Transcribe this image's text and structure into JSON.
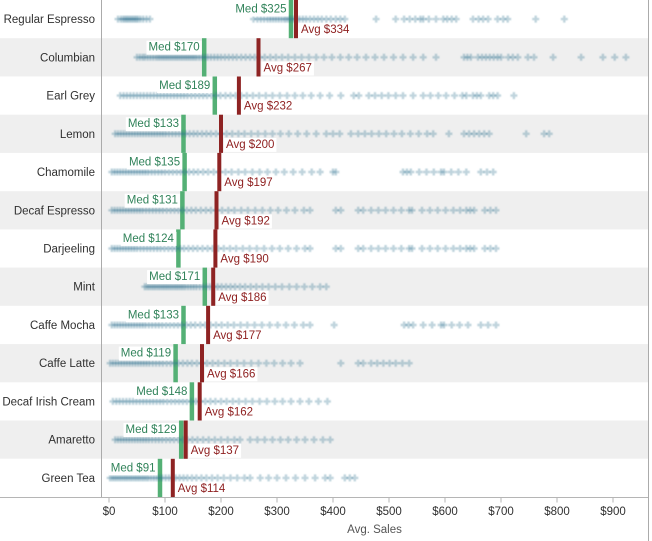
{
  "chart_data": {
    "type": "scatter",
    "subtype": "strip-plot-with-reference-lines",
    "xlabel": "Avg. Sales",
    "x_ticks": [
      "$0",
      "$100",
      "$200",
      "$300",
      "$400",
      "$500",
      "$600",
      "$700",
      "$800",
      "$900"
    ],
    "x_tick_values": [
      0,
      100,
      200,
      300,
      400,
      500,
      600,
      700,
      800,
      900
    ],
    "xlim": [
      -15,
      965
    ],
    "grid": "row-banding",
    "legend": "none",
    "median_label_prefix": "Med $",
    "avg_label_prefix": "Avg $",
    "rows": [
      {
        "label": "Regular Espresso",
        "median": 325,
        "avg": 334,
        "points": [
          16,
          21,
          25,
          28,
          31,
          34,
          37,
          40,
          43,
          46,
          49,
          52,
          56,
          61,
          67,
          73,
          258,
          265,
          271,
          277,
          283,
          288,
          293,
          298,
          303,
          308,
          313,
          317,
          321,
          325,
          330,
          335,
          340,
          346,
          352,
          359,
          366,
          373,
          380,
          388,
          396,
          405,
          413,
          421,
          477,
          512,
          527,
          537,
          547,
          556,
          561,
          571,
          584,
          597,
          604,
          612,
          620,
          650,
          660,
          668,
          677,
          694,
          704,
          712,
          762,
          813
        ]
      },
      {
        "label": "Columbian",
        "median": 170,
        "avg": 267,
        "points": [
          50,
          55,
          60,
          64,
          69,
          74,
          79,
          84,
          88,
          92,
          96,
          100,
          104,
          108,
          112,
          116,
          120,
          124,
          128,
          132,
          136,
          140,
          144,
          148,
          152,
          156,
          161,
          166,
          171,
          176,
          182,
          188,
          194,
          200,
          207,
          214,
          221,
          228,
          236,
          244,
          252,
          260,
          269,
          278,
          288,
          298,
          309,
          320,
          332,
          344,
          357,
          370,
          384,
          398,
          413,
          428,
          443,
          459,
          475,
          491,
          508,
          525,
          543,
          561,
          584,
          634,
          640,
          646,
          659,
          666,
          673,
          680,
          687,
          694,
          700,
          713,
          721,
          730,
          748,
          759,
          793,
          843,
          882,
          903,
          923
        ]
      },
      {
        "label": "Earl Grey",
        "median": 189,
        "avg": 232,
        "points": [
          20,
          26,
          32,
          38,
          44,
          50,
          56,
          62,
          68,
          74,
          80,
          86,
          92,
          98,
          104,
          110,
          116,
          122,
          128,
          134,
          140,
          147,
          154,
          161,
          168,
          175,
          183,
          191,
          199,
          208,
          217,
          226,
          236,
          246,
          257,
          268,
          280,
          292,
          305,
          318,
          332,
          346,
          361,
          377,
          394,
          414,
          437,
          446,
          464,
          475,
          487,
          499,
          512,
          525,
          543,
          561,
          574,
          588,
          602,
          617,
          631,
          638,
          650,
          657,
          664,
          679,
          686,
          694,
          723
        ]
      },
      {
        "label": "Lemon",
        "median": 133,
        "avg": 200,
        "points": [
          11,
          16,
          21,
          26,
          31,
          36,
          41,
          46,
          51,
          56,
          61,
          66,
          71,
          76,
          81,
          86,
          91,
          96,
          101,
          107,
          113,
          119,
          125,
          131,
          137,
          144,
          151,
          158,
          166,
          174,
          182,
          191,
          200,
          210,
          220,
          231,
          242,
          254,
          266,
          279,
          292,
          306,
          321,
          337,
          353,
          370,
          388,
          400,
          412,
          432,
          445,
          457,
          469,
          482,
          495,
          509,
          523,
          538,
          553,
          568,
          579,
          607,
          634,
          643,
          652,
          661,
          670,
          679,
          745,
          777,
          786
        ]
      },
      {
        "label": "Chamomile",
        "median": 135,
        "avg": 197,
        "points": [
          5,
          10,
          15,
          20,
          25,
          30,
          35,
          40,
          45,
          50,
          55,
          60,
          65,
          70,
          76,
          82,
          88,
          94,
          100,
          107,
          114,
          121,
          128,
          135,
          143,
          151,
          159,
          168,
          177,
          187,
          197,
          208,
          219,
          231,
          243,
          256,
          269,
          283,
          298,
          313,
          329,
          345,
          362,
          377,
          400,
          405,
          525,
          532,
          539,
          554,
          567,
          580,
          593,
          598,
          611,
          624,
          638,
          664,
          675,
          686
        ]
      },
      {
        "label": "Decaf Espresso",
        "median": 131,
        "avg": 192,
        "points": [
          5,
          10,
          15,
          20,
          25,
          30,
          35,
          40,
          45,
          50,
          55,
          60,
          66,
          72,
          78,
          84,
          90,
          96,
          103,
          110,
          117,
          124,
          131,
          139,
          147,
          155,
          164,
          173,
          182,
          192,
          202,
          213,
          224,
          236,
          248,
          261,
          274,
          288,
          302,
          317,
          332,
          348,
          359,
          405,
          414,
          445,
          454,
          468,
          481,
          494,
          508,
          522,
          536,
          541,
          559,
          573,
          587,
          601,
          615,
          627,
          638,
          645,
          652,
          671,
          681,
          691
        ]
      },
      {
        "label": "Darjeeling",
        "median": 124,
        "avg": 190,
        "points": [
          5,
          10,
          15,
          20,
          25,
          30,
          35,
          40,
          45,
          50,
          56,
          62,
          68,
          74,
          80,
          86,
          92,
          99,
          106,
          113,
          120,
          127,
          134,
          142,
          150,
          158,
          167,
          176,
          185,
          195,
          205,
          216,
          227,
          239,
          251,
          264,
          277,
          291,
          305,
          320,
          335,
          350,
          359,
          405,
          414,
          445,
          454,
          468,
          481,
          494,
          508,
          522,
          536,
          541,
          559,
          573,
          587,
          601,
          615,
          627,
          638,
          645,
          652,
          671,
          681,
          691
        ]
      },
      {
        "label": "Mint",
        "median": 171,
        "avg": 186,
        "points": [
          64,
          68,
          72,
          76,
          80,
          84,
          88,
          92,
          96,
          100,
          104,
          108,
          112,
          116,
          120,
          124,
          128,
          132,
          136,
          141,
          146,
          151,
          156,
          162,
          168,
          174,
          180,
          187,
          194,
          201,
          209,
          217,
          225,
          234,
          243,
          253,
          263,
          274,
          285,
          297,
          309,
          322,
          335,
          349,
          363,
          377,
          388
        ]
      },
      {
        "label": "Caffe Mocha",
        "median": 133,
        "avg": 177,
        "points": [
          5,
          10,
          15,
          20,
          25,
          30,
          35,
          40,
          45,
          50,
          55,
          60,
          65,
          71,
          77,
          83,
          89,
          95,
          102,
          109,
          116,
          123,
          130,
          138,
          146,
          154,
          163,
          172,
          181,
          191,
          201,
          212,
          223,
          235,
          247,
          260,
          273,
          287,
          301,
          316,
          331,
          347,
          359,
          402,
          527,
          535,
          543,
          561,
          577,
          593,
          598,
          612,
          626,
          641,
          664,
          677,
          691
        ]
      },
      {
        "label": "Caffe Latte",
        "median": 119,
        "avg": 166,
        "points": [
          2,
          7,
          12,
          17,
          22,
          27,
          32,
          37,
          42,
          47,
          52,
          57,
          62,
          67,
          72,
          78,
          84,
          90,
          96,
          103,
          110,
          117,
          124,
          132,
          140,
          148,
          157,
          166,
          175,
          185,
          195,
          206,
          217,
          229,
          241,
          254,
          267,
          281,
          295,
          310,
          325,
          341,
          414,
          445,
          454,
          468,
          479,
          490,
          501,
          512,
          524,
          536
        ]
      },
      {
        "label": "Decaf Irish Cream",
        "median": 148,
        "avg": 162,
        "points": [
          7,
          13,
          19,
          25,
          31,
          37,
          43,
          49,
          55,
          61,
          67,
          73,
          79,
          85,
          91,
          97,
          104,
          111,
          118,
          125,
          132,
          139,
          147,
          155,
          163,
          172,
          181,
          190,
          200,
          210,
          221,
          232,
          244,
          256,
          269,
          282,
          296,
          310,
          325,
          341,
          357,
          374,
          390
        ]
      },
      {
        "label": "Amaretto",
        "median": 129,
        "avg": 137,
        "points": [
          11,
          16,
          21,
          26,
          31,
          36,
          41,
          46,
          51,
          56,
          61,
          66,
          71,
          77,
          83,
          89,
          95,
          102,
          109,
          116,
          124,
          132,
          140,
          149,
          158,
          168,
          178,
          189,
          200,
          212,
          224,
          234,
          252,
          265,
          278,
          292,
          306,
          320,
          335,
          350,
          366,
          382,
          395
        ]
      },
      {
        "label": "Green Tea",
        "median": 91,
        "avg": 114,
        "points": [
          2,
          6,
          10,
          14,
          18,
          22,
          26,
          30,
          34,
          38,
          42,
          46,
          50,
          54,
          58,
          62,
          66,
          70,
          75,
          80,
          85,
          90,
          95,
          101,
          107,
          113,
          119,
          126,
          133,
          140,
          148,
          156,
          165,
          174,
          184,
          194,
          205,
          217,
          229,
          242,
          252,
          270,
          285,
          300,
          316,
          333,
          350,
          368,
          386,
          395,
          421,
          430,
          439
        ]
      }
    ]
  },
  "colors": {
    "mark": "#2f7090",
    "mark_opacity": "0.3",
    "median_line": "#54b075",
    "median_text": "#31835a",
    "avg_line": "#8e2323",
    "avg_text": "#8e1f1f",
    "band": "#efefef",
    "axis_line": "#b5b5b5",
    "divider": "#ababab",
    "label_text": "#303030",
    "axis_title_text": "#555555",
    "label_box": "#ffffff"
  }
}
